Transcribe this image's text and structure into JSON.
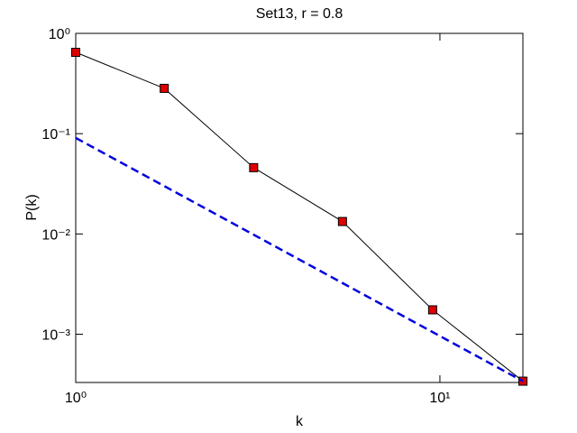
{
  "chart_data": {
    "type": "line",
    "title": "Set13, r = 0.8",
    "xlabel": "k",
    "ylabel": "P(k)",
    "xscale": "log",
    "yscale": "log",
    "xlim": [
      1,
      16.9
    ],
    "ylim": [
      0.00033,
      1
    ],
    "xticks": [
      {
        "value": 1,
        "label": "10⁰"
      },
      {
        "value": 10,
        "label": "10¹"
      }
    ],
    "yticks": [
      {
        "value": 0.001,
        "label": "10⁻³"
      },
      {
        "value": 0.01,
        "label": "10⁻²"
      },
      {
        "value": 0.1,
        "label": "10⁻¹"
      },
      {
        "value": 1,
        "label": "10⁰"
      }
    ],
    "series": [
      {
        "x": [
          1,
          1.75,
          3.08,
          5.4,
          9.55,
          16.9
        ],
        "values": [
          0.647,
          0.283,
          0.0458,
          0.0133,
          0.00175,
          0.00034
        ],
        "color": "#000000",
        "marker_color": "#dd0000",
        "dash": "solid"
      },
      {
        "x": [
          1,
          16.9
        ],
        "values": [
          0.0907,
          0.00034
        ],
        "color": "#0000dd",
        "dash": "dashed"
      }
    ]
  }
}
